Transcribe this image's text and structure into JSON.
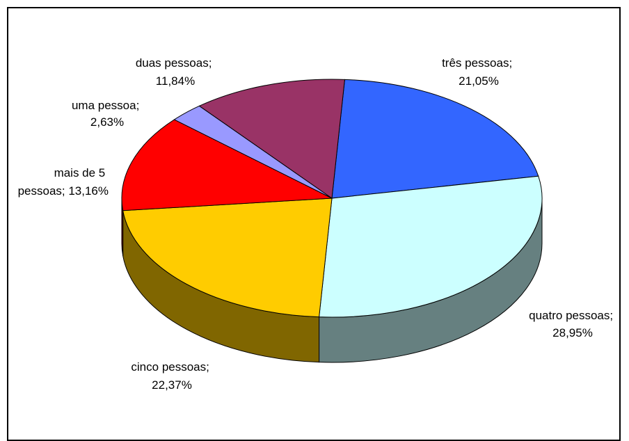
{
  "chart_data": {
    "type": "pie",
    "title": "",
    "three_d": true,
    "legend": "none",
    "slices": [
      {
        "label_line1": "três pessoas;",
        "label_line2": "21,05%",
        "value": 21.05,
        "color": "#3366FF",
        "side_color": "#1F3D99"
      },
      {
        "label_line1": "quatro pessoas;",
        "label_line2": "28,95%",
        "value": 28.95,
        "color": "#CCFFFF",
        "side_color": "#668080"
      },
      {
        "label_line1": "cinco pessoas;",
        "label_line2": "22,37%",
        "value": 22.37,
        "color": "#FFCC00",
        "side_color": "#806600"
      },
      {
        "label_line1": "mais de 5",
        "label_line2": "pessoas; 13,16%",
        "value": 13.16,
        "color": "#FF0000",
        "side_color": "#800000"
      },
      {
        "label_line1": "uma pessoa;",
        "label_line2": "2,63%",
        "value": 2.63,
        "color": "#9999FF",
        "side_color": "#4D4D80"
      },
      {
        "label_line1": "duas pessoas;",
        "label_line2": "11,84%",
        "value": 11.84,
        "color": "#993366",
        "side_color": "#4D1A33"
      }
    ]
  }
}
